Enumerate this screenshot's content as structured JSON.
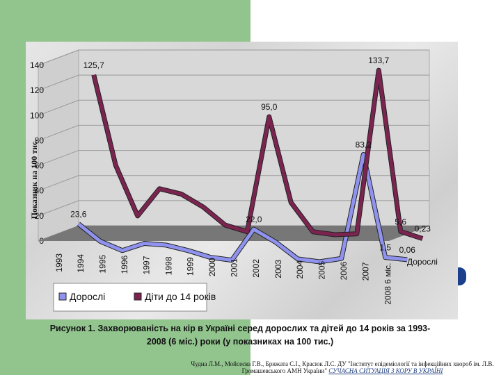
{
  "chart_data": {
    "type": "line",
    "ylabel": "Показник на 100 тис.",
    "ylim": [
      0,
      140
    ],
    "yticks": [
      0,
      20,
      40,
      60,
      80,
      100,
      120,
      140
    ],
    "categories": [
      "1993",
      "1994",
      "1995",
      "1996",
      "1997",
      "1998",
      "1999",
      "2000",
      "2001",
      "2002",
      "2003",
      "2004",
      "2005",
      "2006",
      "2007",
      "2008 6 міс."
    ],
    "depth_label": "Дорослі",
    "grid": true,
    "series": [
      {
        "name": "Дорослі",
        "color": "#8f93ee",
        "values": [
          23.6,
          10,
          3,
          9,
          8,
          4,
          -1,
          -3,
          22.0,
          12,
          -1,
          -3,
          0,
          83.2,
          1.5,
          0.06
        ]
      },
      {
        "name": "Діти до 14 років",
        "color": "#7b2450",
        "values": [
          125.7,
          54,
          14,
          36,
          32,
          22,
          8,
          3,
          95.0,
          27,
          4,
          2,
          3,
          133.7,
          5.6,
          0.23
        ]
      }
    ],
    "data_labels": [
      {
        "series": 0,
        "index": 0,
        "text": "23,6"
      },
      {
        "series": 0,
        "index": 8,
        "text": "22,0"
      },
      {
        "series": 0,
        "index": 13,
        "text": "83,2"
      },
      {
        "series": 0,
        "index": 14,
        "text": "1,5"
      },
      {
        "series": 0,
        "index": 15,
        "text": "0,06"
      },
      {
        "series": 1,
        "index": 0,
        "text": "125,7"
      },
      {
        "series": 1,
        "index": 8,
        "text": "95,0"
      },
      {
        "series": 1,
        "index": 13,
        "text": "133,7"
      },
      {
        "series": 1,
        "index": 14,
        "text": "5,6"
      },
      {
        "series": 1,
        "index": 15,
        "text": "0,23"
      }
    ],
    "legend_position": "bottom-left"
  },
  "caption": {
    "line1": "Рисунок 1. Захворюваність на кір  в Україні серед дорослих та дітей до 14 років за 1993-",
    "line2": "2008 (6 міс.) роки (у показниках на 100 тис.)"
  },
  "credit": {
    "authors": "Чудна Л.М., Мойсеєва Г.В., Брижата С.І., Красюк Л.С. ДУ \"Інститут епідеміології та інфекційних хвороб  ім. Л.В. Громашевського АМН України\"",
    "source": "СУЧАСНА СИТУАЦІЯ З КОРУ В УКРАЇНІ"
  },
  "colors": {
    "background_left": "#92c48e",
    "floor": "#777777",
    "adults": "#8f93ee",
    "children": "#7b2450"
  }
}
